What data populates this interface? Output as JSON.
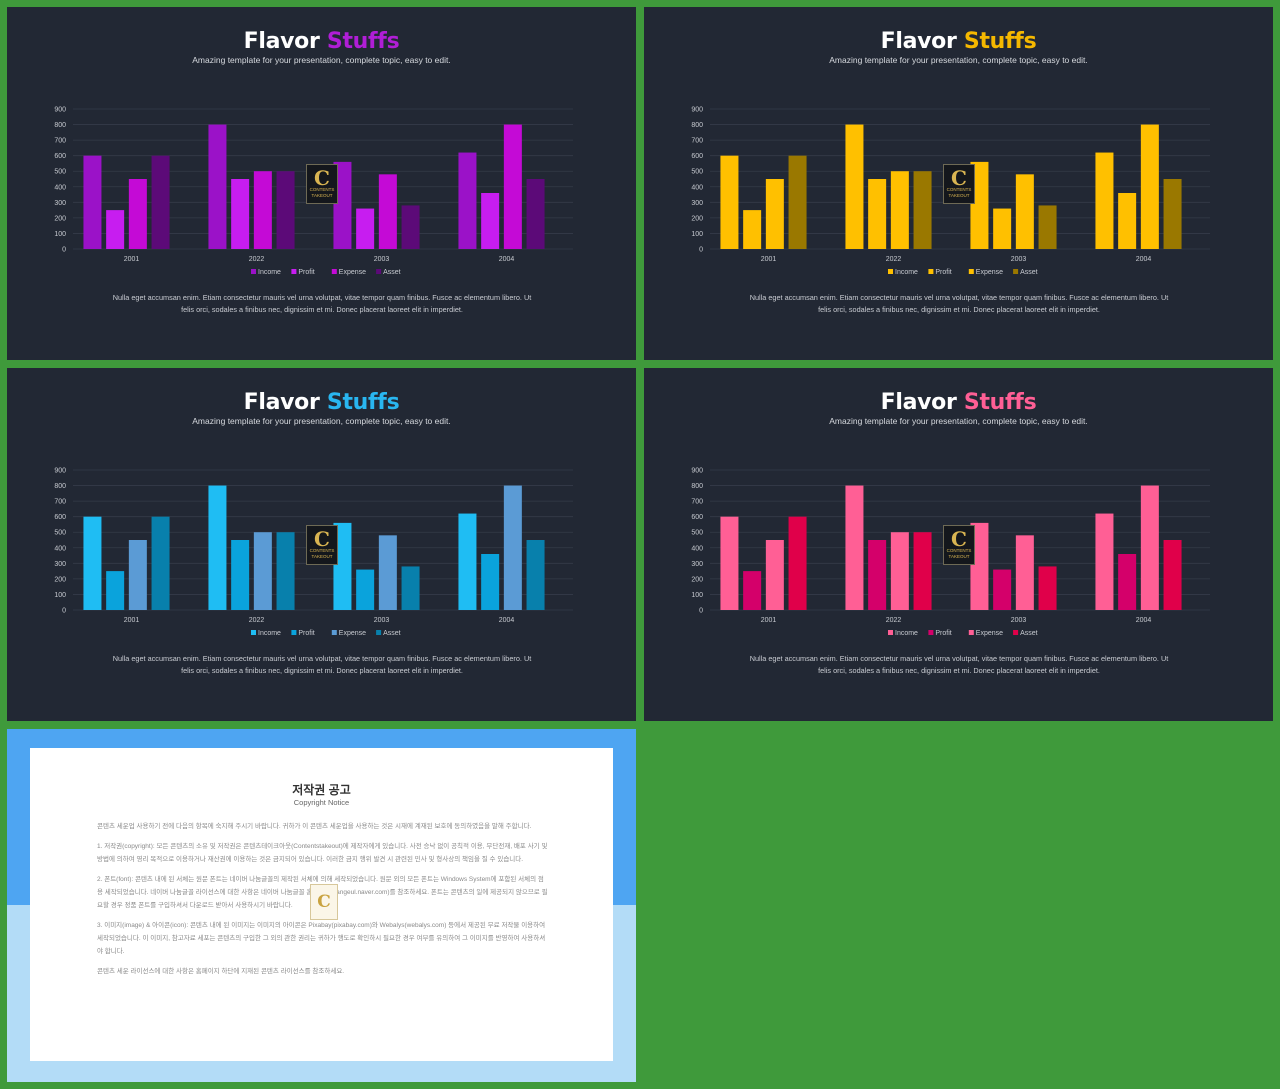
{
  "slides": [
    {
      "title_main": "Flavor",
      "title_accent": "Stuffs",
      "accent": "#b01ed6",
      "subtitle": "Amazing template for your presentation, complete topic, easy to edit.",
      "series_colors": [
        "#9b12c8",
        "#c71df0",
        "#c40ad6",
        "#5c0a78"
      ],
      "description": "Nulla eget accumsan enim. Etiam consectetur mauris vel urna volutpat, vitae tempor quam finibus. Fusce ac elementum libero. Ut felis orci, sodales a finibus nec, dignissim et mi. Donec placerat laoreet elit in imperdiet."
    },
    {
      "title_main": "Flavor",
      "title_accent": "Stuffs",
      "accent": "#f5b800",
      "subtitle": "Amazing template for your presentation, complete topic, easy to edit.",
      "series_colors": [
        "#ffc000",
        "#ffc000",
        "#ffc000",
        "#9a7800"
      ],
      "description": "Nulla eget accumsan enim. Etiam consectetur mauris vel urna volutpat, vitae tempor quam finibus. Fusce ac elementum libero. Ut felis orci, sodales a finibus nec, dignissim et mi. Donec placerat laoreet elit in imperdiet."
    },
    {
      "title_main": "Flavor",
      "title_accent": "Stuffs",
      "accent": "#29b6f0",
      "subtitle": "Amazing template for your presentation, complete topic, easy to edit.",
      "series_colors": [
        "#1fbdf3",
        "#0aa3dc",
        "#5b9bd5",
        "#0880ac"
      ],
      "description": "Nulla eget accumsan enim. Etiam consectetur mauris vel urna volutpat, vitae tempor quam finibus. Fusce ac elementum libero. Ut felis orci, sodales a finibus nec, dignissim et mi. Donec placerat laoreet elit in imperdiet."
    },
    {
      "title_main": "Flavor",
      "title_accent": "Stuffs",
      "accent": "#ff5f95",
      "subtitle": "Amazing template for your presentation, complete topic, easy to edit.",
      "series_colors": [
        "#ff5f95",
        "#d4006a",
        "#ff5f95",
        "#e0004a"
      ],
      "description": "Nulla eget accumsan enim. Etiam consectetur mauris vel urna volutpat, vitae tempor quam finibus. Fusce ac elementum libero. Ut felis orci, sodales a finibus nec, dignissim et mi. Donec placerat laoreet elit in imperdiet."
    }
  ],
  "chart_data": {
    "type": "bar",
    "categories": [
      "2001",
      "2022",
      "2003",
      "2004"
    ],
    "series": [
      {
        "name": "Income",
        "values": [
          600,
          800,
          560,
          620
        ]
      },
      {
        "name": "Profit",
        "values": [
          250,
          450,
          260,
          360
        ]
      },
      {
        "name": "Expense",
        "values": [
          450,
          500,
          480,
          800
        ]
      },
      {
        "name": "Asset",
        "values": [
          600,
          500,
          280,
          450
        ]
      }
    ],
    "yticks": [
      "0",
      "100",
      "200",
      "300",
      "400",
      "500",
      "600",
      "700",
      "800",
      "900"
    ],
    "ylim": [
      0,
      900
    ],
    "legend_position": "bottom",
    "grid": true
  },
  "watermark": {
    "letter": "C",
    "text": "CONTENTS TAKEOUT"
  },
  "copyright": {
    "title": "저작권 공고",
    "subtitle": "Copyright Notice",
    "paragraphs": [
      "콘텐츠 세운업 사용하기 전에 다음의 항목에 숙지해 주시기 바랍니다. 귀하가 이 콘텐츠 세운업을 사용하는 것은 시재에 계재된 보호에 동의하였음을 말해 주합니다.",
      "1. 저작권(copyright): 모든 콘텐츠의 소유 및 저작권은 콘텐츠테이크아웃(Contentstakeout)에 제작자에게 있습니다. 사전 승낙 없이 공칙적 이용, 무단전재, 배포 사기 및 방법에 의하여 영리 목적으로 이용하거나 재산권에 이용하는 것은 금지되어 있습니다. 이러한 금지 행위 발견 시 관련된 민사 및 형사상의 책임을 질 수 있습니다.",
      "2. 폰트(font): 콘텐츠 내에 된 서체는 원문 폰트는 네이버 나눔글꼴의 제작된 서체에 의해 세작되었습니다. 원문 외의 모든 폰트는 Windows System에 포함된 서체의 점용 세작되었습니다. 네이버 나눔글꼴 라이선스에 대한 사항은 네이버 나눔글꼴 홈페이지(hangeul.naver.com)를 참조하세요. 폰트는 콘텐츠의 일에 제공되지 않으므로 필요할 경우 정품 폰트를 구입하셔서 다운로드 받아서 사용하시기 바랍니다.",
      "3. 이미지(image) & 아이콘(icon): 콘텐츠 내에 된 이미지는 이미지의 아이콘은 Pixabay(pixabay.com)와 Webalys(webalys.com) 등에서 제공된 무료 저작물 이용하여 세작되었습니다. 이 이미지, 참고자료 세포는 콘텐츠의 구입한 그 외의 관한 권리는 귀하가 행도로 확인하시 필요한 경우 여부를 유의하여 그 이미지를 반영하여 사용하셔야 합니다.",
      "콘텐츠 세운 라이선스에 대한 사항은 홈페이지 하단에 지재된 콘텐츠 라이선스를 참조하세요."
    ]
  }
}
